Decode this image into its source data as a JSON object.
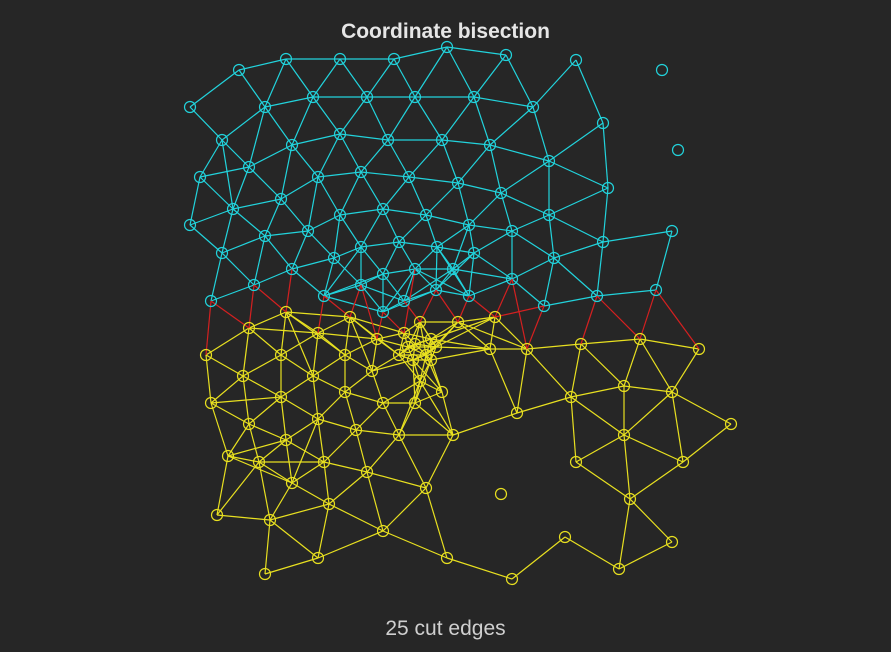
{
  "title": "Coordinate bisection",
  "caption": "25 cut edges",
  "colors": {
    "background": "#262626",
    "part_a": "#22d3dc",
    "part_b": "#e8e020",
    "cut_edge": "#d42020"
  }
}
